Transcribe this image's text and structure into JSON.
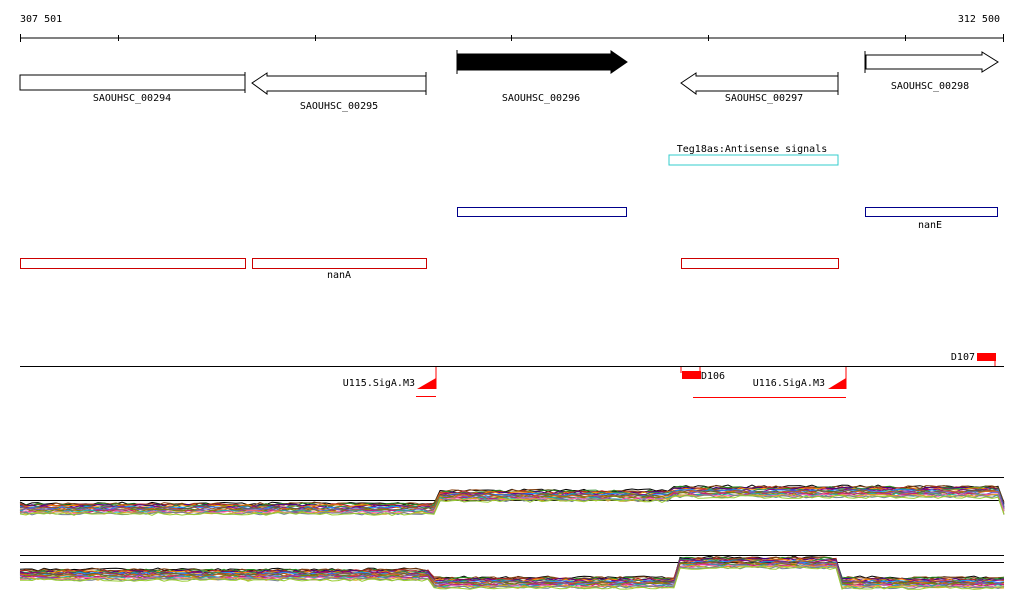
{
  "ruler": {
    "start_label": "307 501",
    "end_label": "312 500"
  },
  "genes": [
    {
      "id": "SAOUHSC_00294",
      "strand": "-",
      "highlighted": false
    },
    {
      "id": "SAOUHSC_00295",
      "strand": "-",
      "highlighted": false
    },
    {
      "id": "SAOUHSC_00296",
      "strand": "+",
      "highlighted": true
    },
    {
      "id": "SAOUHSC_00297",
      "strand": "-",
      "highlighted": false
    },
    {
      "id": "SAOUHSC_00298",
      "strand": "+",
      "highlighted": false
    }
  ],
  "antisense": {
    "label": "Teg18as:Antisense signals",
    "color": "#33cccc"
  },
  "operon_blue": {
    "label": "nanE",
    "color": "#00008b"
  },
  "operon_red": {
    "label": "nanA",
    "color": "#cc0000"
  },
  "promoters": [
    {
      "label": "U115.SigA.M3"
    },
    {
      "label": "U116.SigA.M3"
    }
  ],
  "segments": [
    {
      "label": "D106"
    },
    {
      "label": "D107"
    }
  ],
  "colors": {
    "feature_red": "#ff0000",
    "gene_fill": "#000000",
    "axis": "#000000"
  }
}
